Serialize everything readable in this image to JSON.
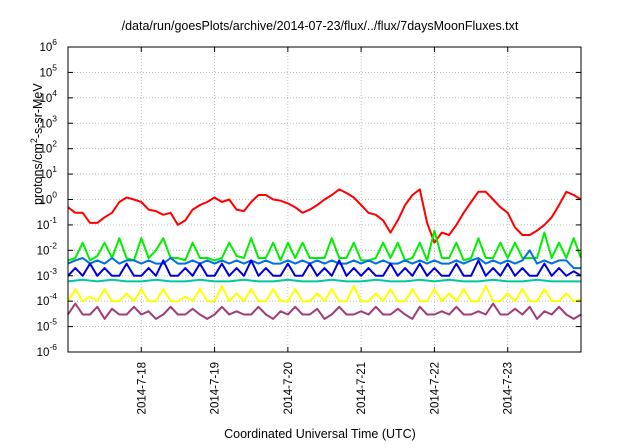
{
  "chart_data": {
    "type": "line",
    "title": "/data/run/goesPlots/archive/2014-07-23/flux/../flux/7daysMoonFluxes.txt",
    "xlabel": "Coordinated Universal Time (UTC)",
    "ylabel": {
      "prefix": "protons/cm",
      "sup": "2",
      "suffix": "-s-sr-MeV"
    },
    "yscale": "log",
    "ylim": [
      1e-06,
      1000000.0
    ],
    "xlim": [
      0,
      7
    ],
    "x_ticks": [
      {
        "x": 1,
        "label": "2014-7-18"
      },
      {
        "x": 2,
        "label": "2014-7-19"
      },
      {
        "x": 3,
        "label": "2014-7-20"
      },
      {
        "x": 4,
        "label": "2014-7-21"
      },
      {
        "x": 5,
        "label": "2014-7-22"
      },
      {
        "x": 6,
        "label": "2014-7-23"
      }
    ],
    "y_ticks": [
      {
        "base": "10",
        "exp": "-6",
        "value": 1e-06
      },
      {
        "base": "10",
        "exp": "-5",
        "value": 1e-05
      },
      {
        "base": "10",
        "exp": "-4",
        "value": 0.0001
      },
      {
        "base": "10",
        "exp": "-3",
        "value": 0.001
      },
      {
        "base": "10",
        "exp": "-2",
        "value": 0.01
      },
      {
        "base": "10",
        "exp": "-1",
        "value": 0.1
      },
      {
        "base": "10",
        "exp": "0",
        "value": 1
      },
      {
        "base": "10",
        "exp": "1",
        "value": 10
      },
      {
        "base": "10",
        "exp": "2",
        "value": 100
      },
      {
        "base": "10",
        "exp": "3",
        "value": 1000
      },
      {
        "base": "10",
        "exp": "4",
        "value": 10000
      },
      {
        "base": "10",
        "exp": "5",
        "value": 100000
      },
      {
        "base": "10",
        "exp": "6",
        "value": 1000000
      }
    ],
    "grid": true,
    "legend": "none",
    "series": [
      {
        "color": "#ff0000",
        "x": [
          0,
          0.1,
          0.2,
          0.3,
          0.4,
          0.5,
          0.6,
          0.7,
          0.8,
          0.9,
          1,
          1.1,
          1.2,
          1.3,
          1.4,
          1.5,
          1.6,
          1.7,
          1.8,
          1.9,
          2,
          2.1,
          2.2,
          2.3,
          2.4,
          2.5,
          2.6,
          2.7,
          2.8,
          2.9,
          3,
          3.1,
          3.2,
          3.3,
          3.4,
          3.5,
          3.6,
          3.7,
          3.8,
          3.9,
          4,
          4.1,
          4.2,
          4.3,
          4.4,
          4.5,
          4.6,
          4.7,
          4.8,
          4.9,
          5,
          5.1,
          5.2,
          5.3,
          5.4,
          5.5,
          5.6,
          5.7,
          5.8,
          5.9,
          6,
          6.1,
          6.2,
          6.3,
          6.4,
          6.5,
          6.6,
          6.7,
          6.8,
          6.9,
          7
        ],
        "y": [
          0.5,
          0.3,
          0.3,
          0.12,
          0.12,
          0.2,
          0.3,
          0.8,
          1.2,
          1.0,
          0.8,
          0.4,
          0.35,
          0.25,
          0.3,
          0.1,
          0.15,
          0.4,
          0.6,
          0.8,
          1.2,
          0.8,
          1.0,
          0.4,
          0.35,
          0.8,
          1.5,
          1.5,
          1.0,
          0.9,
          0.7,
          0.5,
          0.3,
          0.4,
          0.6,
          1.0,
          1.5,
          2.5,
          1.8,
          1.2,
          0.6,
          0.3,
          0.25,
          0.15,
          0.05,
          0.15,
          0.6,
          1.5,
          2.5,
          0.12,
          0.02,
          0.05,
          0.04,
          0.1,
          0.3,
          0.8,
          2.0,
          2.0,
          1.0,
          0.5,
          0.3,
          0.08,
          0.04,
          0.04,
          0.06,
          0.1,
          0.2,
          0.6,
          2.0,
          1.5,
          1.0
        ]
      },
      {
        "color": "#00ee00",
        "x": [
          0,
          0.1,
          0.2,
          0.3,
          0.4,
          0.5,
          0.6,
          0.7,
          0.8,
          0.9,
          1,
          1.1,
          1.2,
          1.3,
          1.4,
          1.5,
          1.6,
          1.7,
          1.8,
          1.9,
          2,
          2.1,
          2.2,
          2.3,
          2.4,
          2.5,
          2.6,
          2.7,
          2.8,
          2.9,
          3,
          3.1,
          3.2,
          3.3,
          3.4,
          3.5,
          3.6,
          3.7,
          3.8,
          3.9,
          4,
          4.1,
          4.2,
          4.3,
          4.4,
          4.5,
          4.6,
          4.7,
          4.8,
          4.9,
          5,
          5.1,
          5.2,
          5.3,
          5.4,
          5.5,
          5.6,
          5.7,
          5.8,
          5.9,
          6,
          6.1,
          6.2,
          6.3,
          6.4,
          6.5,
          6.6,
          6.7,
          6.8,
          6.9,
          7
        ],
        "y": [
          0.004,
          0.005,
          0.02,
          0.004,
          0.006,
          0.02,
          0.005,
          0.03,
          0.005,
          0.004,
          0.03,
          0.005,
          0.01,
          0.03,
          0.005,
          0.005,
          0.004,
          0.02,
          0.005,
          0.005,
          0.004,
          0.005,
          0.02,
          0.006,
          0.005,
          0.03,
          0.005,
          0.005,
          0.02,
          0.004,
          0.02,
          0.005,
          0.02,
          0.005,
          0.005,
          0.005,
          0.03,
          0.005,
          0.005,
          0.02,
          0.004,
          0.004,
          0.005,
          0.02,
          0.005,
          0.02,
          0.004,
          0.005,
          0.02,
          0.004,
          0.06,
          0.005,
          0.005,
          0.02,
          0.004,
          0.005,
          0.03,
          0.005,
          0.005,
          0.02,
          0.005,
          0.02,
          0.005,
          0.005,
          0.005,
          0.05,
          0.005,
          0.02,
          0.005,
          0.03,
          0.005
        ]
      },
      {
        "color": "#0070e0",
        "x": [
          0,
          0.1,
          0.2,
          0.3,
          0.4,
          0.5,
          0.6,
          0.7,
          0.8,
          0.9,
          1,
          1.1,
          1.2,
          1.3,
          1.4,
          1.5,
          1.6,
          1.7,
          1.8,
          1.9,
          2,
          2.1,
          2.2,
          2.3,
          2.4,
          2.5,
          2.6,
          2.7,
          2.8,
          2.9,
          3,
          3.1,
          3.2,
          3.3,
          3.4,
          3.5,
          3.6,
          3.7,
          3.8,
          3.9,
          4,
          4.1,
          4.2,
          4.3,
          4.4,
          4.5,
          4.6,
          4.7,
          4.8,
          4.9,
          5,
          5.1,
          5.2,
          5.3,
          5.4,
          5.5,
          5.6,
          5.7,
          5.8,
          5.9,
          6,
          6.1,
          6.2,
          6.3,
          6.4,
          6.5,
          6.6,
          6.7,
          6.8,
          6.9,
          7
        ],
        "y": [
          0.003,
          0.004,
          0.005,
          0.003,
          0.004,
          0.003,
          0.005,
          0.003,
          0.004,
          0.004,
          0.003,
          0.004,
          0.003,
          0.003,
          0.005,
          0.003,
          0.003,
          0.004,
          0.003,
          0.004,
          0.003,
          0.004,
          0.003,
          0.004,
          0.003,
          0.004,
          0.003,
          0.004,
          0.003,
          0.003,
          0.004,
          0.003,
          0.004,
          0.003,
          0.004,
          0.003,
          0.004,
          0.003,
          0.003,
          0.004,
          0.003,
          0.004,
          0.003,
          0.004,
          0.003,
          0.003,
          0.004,
          0.003,
          0.004,
          0.003,
          0.004,
          0.003,
          0.003,
          0.004,
          0.003,
          0.004,
          0.005,
          0.003,
          0.004,
          0.003,
          0.004,
          0.003,
          0.004,
          0.01,
          0.003,
          0.004,
          0.003,
          0.004,
          0.004,
          0.002,
          0.002
        ]
      },
      {
        "color": "#0000dd",
        "x": [
          0,
          0.1,
          0.2,
          0.3,
          0.4,
          0.5,
          0.6,
          0.7,
          0.8,
          0.9,
          1,
          1.1,
          1.2,
          1.3,
          1.4,
          1.5,
          1.6,
          1.7,
          1.8,
          1.9,
          2,
          2.1,
          2.2,
          2.3,
          2.4,
          2.5,
          2.6,
          2.7,
          2.8,
          2.9,
          3,
          3.1,
          3.2,
          3.3,
          3.4,
          3.5,
          3.6,
          3.7,
          3.8,
          3.9,
          4,
          4.1,
          4.2,
          4.3,
          4.4,
          4.5,
          4.6,
          4.7,
          4.8,
          4.9,
          5,
          5.1,
          5.2,
          5.3,
          5.4,
          5.5,
          5.6,
          5.7,
          5.8,
          5.9,
          6,
          6.1,
          6.2,
          6.3,
          6.4,
          6.5,
          6.6,
          6.7,
          6.8,
          6.9,
          7
        ],
        "y": [
          0.001,
          0.002,
          0.001,
          0.003,
          0.001,
          0.002,
          0.001,
          0.001,
          0.003,
          0.001,
          0.001,
          0.002,
          0.001,
          0.004,
          0.001,
          0.001,
          0.002,
          0.001,
          0.003,
          0.001,
          0.001,
          0.003,
          0.001,
          0.002,
          0.001,
          0.004,
          0.001,
          0.002,
          0.001,
          0.001,
          0.003,
          0.001,
          0.001,
          0.003,
          0.001,
          0.002,
          0.001,
          0.004,
          0.001,
          0.002,
          0.001,
          0.002,
          0.001,
          0.001,
          0.003,
          0.001,
          0.002,
          0.001,
          0.003,
          0.001,
          0.002,
          0.001,
          0.001,
          0.003,
          0.001,
          0.001,
          0.004,
          0.001,
          0.002,
          0.001,
          0.003,
          0.001,
          0.002,
          0.001,
          0.001,
          0.003,
          0.001,
          0.002,
          0.001,
          0.0015,
          0.001
        ]
      },
      {
        "color": "#00c8a0",
        "x": [
          0,
          0.2,
          0.4,
          0.6,
          0.8,
          1,
          1.2,
          1.4,
          1.6,
          1.8,
          2,
          2.2,
          2.4,
          2.6,
          2.8,
          3,
          3.2,
          3.4,
          3.6,
          3.8,
          4,
          4.2,
          4.4,
          4.6,
          4.8,
          5,
          5.2,
          5.4,
          5.6,
          5.8,
          6,
          6.2,
          6.4,
          6.6,
          6.8,
          7
        ],
        "y": [
          0.0006,
          0.0007,
          0.0006,
          0.0007,
          0.0006,
          0.0006,
          0.0007,
          0.0006,
          0.0006,
          0.0007,
          0.0006,
          0.0006,
          0.0007,
          0.0006,
          0.0006,
          0.0007,
          0.0006,
          0.0006,
          0.0007,
          0.0006,
          0.0006,
          0.0007,
          0.0006,
          0.0006,
          0.0007,
          0.0006,
          0.0007,
          0.0006,
          0.0006,
          0.0007,
          0.0006,
          0.0006,
          0.0007,
          0.0006,
          0.0006,
          0.0006
        ]
      },
      {
        "color": "#ffff00",
        "x": [
          0,
          0.1,
          0.2,
          0.3,
          0.4,
          0.5,
          0.6,
          0.7,
          0.8,
          0.9,
          1,
          1.1,
          1.2,
          1.3,
          1.4,
          1.5,
          1.6,
          1.7,
          1.8,
          1.9,
          2,
          2.1,
          2.2,
          2.3,
          2.4,
          2.5,
          2.6,
          2.7,
          2.8,
          2.9,
          3,
          3.1,
          3.2,
          3.3,
          3.4,
          3.5,
          3.6,
          3.7,
          3.8,
          3.9,
          4,
          4.1,
          4.2,
          4.3,
          4.4,
          4.5,
          4.6,
          4.7,
          4.8,
          4.9,
          5,
          5.1,
          5.2,
          5.3,
          5.4,
          5.5,
          5.6,
          5.7,
          5.8,
          5.9,
          6,
          6.1,
          6.2,
          6.3,
          6.4,
          6.5,
          6.6,
          6.7,
          6.8,
          6.9,
          7
        ],
        "y": [
          0.0001,
          0.0003,
          0.0001,
          0.00015,
          0.0001,
          0.0003,
          0.0001,
          0.0001,
          0.0002,
          0.0001,
          0.0003,
          0.0001,
          0.0001,
          0.0003,
          0.0001,
          0.0001,
          0.00015,
          0.0001,
          0.0003,
          0.0001,
          0.0001,
          0.0004,
          0.0001,
          0.0002,
          0.0001,
          0.0003,
          0.0001,
          0.0001,
          0.0003,
          0.0001,
          0.0001,
          0.0003,
          0.0001,
          0.0001,
          0.0002,
          0.0001,
          0.0003,
          0.0001,
          0.0001,
          0.0004,
          0.0001,
          0.0001,
          0.0002,
          0.0001,
          0.0003,
          0.0001,
          0.0001,
          0.0003,
          0.0001,
          0.0001,
          0.0003,
          0.0001,
          0.0002,
          0.0001,
          0.0003,
          0.0001,
          0.0001,
          0.0004,
          0.0001,
          0.0001,
          0.0002,
          0.0001,
          0.0003,
          0.0001,
          0.0001,
          0.0003,
          0.0001,
          0.0001,
          0.0002,
          0.0001,
          0.00012
        ]
      },
      {
        "color": "#a03c78",
        "x": [
          0,
          0.1,
          0.2,
          0.3,
          0.4,
          0.5,
          0.6,
          0.7,
          0.8,
          0.9,
          1,
          1.1,
          1.2,
          1.3,
          1.4,
          1.5,
          1.6,
          1.7,
          1.8,
          1.9,
          2,
          2.1,
          2.2,
          2.3,
          2.4,
          2.5,
          2.6,
          2.7,
          2.8,
          2.9,
          3,
          3.1,
          3.2,
          3.3,
          3.4,
          3.5,
          3.6,
          3.7,
          3.8,
          3.9,
          4,
          4.1,
          4.2,
          4.3,
          4.4,
          4.5,
          4.6,
          4.7,
          4.8,
          4.9,
          5,
          5.1,
          5.2,
          5.3,
          5.4,
          5.5,
          5.6,
          5.7,
          5.8,
          5.9,
          6,
          6.1,
          6.2,
          6.3,
          6.4,
          6.5,
          6.6,
          6.7,
          6.8,
          6.9,
          7
        ],
        "y": [
          3e-05,
          8e-05,
          3e-05,
          3e-05,
          6e-05,
          2e-05,
          5e-05,
          3e-05,
          3e-05,
          6e-05,
          3e-05,
          4e-05,
          2e-05,
          3e-05,
          6e-05,
          3e-05,
          3e-05,
          5e-05,
          3e-05,
          2e-05,
          3e-05,
          6e-05,
          3e-05,
          4e-05,
          3e-05,
          3e-05,
          6e-05,
          3e-05,
          2e-05,
          4e-05,
          3e-05,
          6e-05,
          3e-05,
          3e-05,
          5e-05,
          2e-05,
          3e-05,
          6e-05,
          3e-05,
          3e-05,
          4e-05,
          3e-05,
          6e-05,
          3e-05,
          3e-05,
          5e-05,
          3e-05,
          2e-05,
          6e-05,
          3e-05,
          3e-05,
          4e-05,
          3e-05,
          6e-05,
          3e-05,
          3e-05,
          4e-05,
          3e-05,
          8e-05,
          3e-05,
          3e-05,
          5e-05,
          3e-05,
          6e-05,
          2e-05,
          4e-05,
          3e-05,
          6e-05,
          3e-05,
          2e-05,
          3e-05
        ]
      }
    ]
  }
}
